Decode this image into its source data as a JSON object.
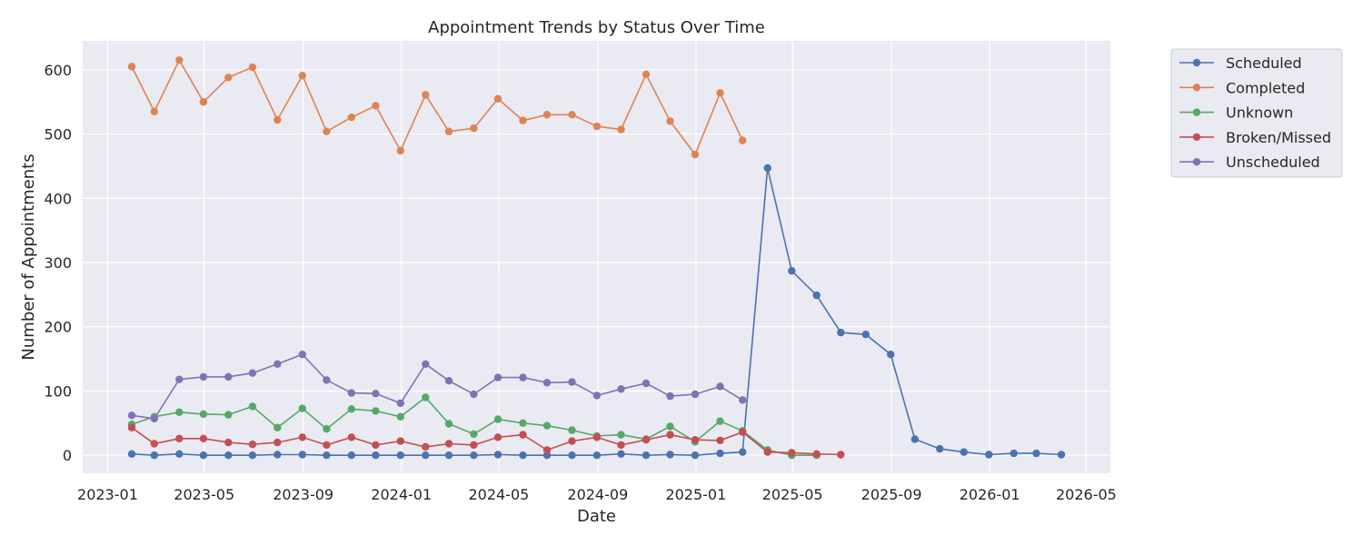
{
  "chart_data": {
    "type": "line",
    "title": "Appointment Trends by Status Over Time",
    "xlabel": "Date",
    "ylabel": "Number of Appointments",
    "xlim": [
      "2022-12-01",
      "2026-05-31"
    ],
    "ylim": [
      -28,
      645
    ],
    "x_ticks": [
      "2023-01",
      "2023-05",
      "2023-09",
      "2024-01",
      "2024-05",
      "2024-09",
      "2025-01",
      "2025-05",
      "2025-09",
      "2026-01",
      "2026-05"
    ],
    "y_ticks": [
      0,
      100,
      200,
      300,
      400,
      500,
      600
    ],
    "grid": true,
    "legend_position": "outside-top-right",
    "series": [
      {
        "name": "Scheduled",
        "color": "#4c72b0",
        "x": [
          "2023-01-31",
          "2023-02-28",
          "2023-03-31",
          "2023-04-30",
          "2023-05-31",
          "2023-06-30",
          "2023-07-31",
          "2023-08-31",
          "2023-09-30",
          "2023-10-31",
          "2023-11-30",
          "2023-12-31",
          "2024-01-31",
          "2024-02-29",
          "2024-03-31",
          "2024-04-30",
          "2024-05-31",
          "2024-06-30",
          "2024-07-31",
          "2024-08-31",
          "2024-09-30",
          "2024-10-31",
          "2024-11-30",
          "2024-12-31",
          "2025-01-31",
          "2025-02-28",
          "2025-03-31",
          "2025-04-30",
          "2025-05-31",
          "2025-06-30",
          "2025-07-31",
          "2025-08-31",
          "2025-09-30",
          "2025-10-31",
          "2025-11-30",
          "2025-12-31",
          "2026-01-31",
          "2026-02-28",
          "2026-03-31"
        ],
        "values": [
          2,
          0,
          2,
          0,
          0,
          0,
          1,
          1,
          0,
          0,
          0,
          0,
          0,
          0,
          0,
          1,
          0,
          0,
          0,
          0,
          2,
          0,
          1,
          0,
          3,
          5,
          447,
          287,
          249,
          191,
          188,
          157,
          25,
          10,
          5,
          1,
          3,
          3,
          1
        ]
      },
      {
        "name": "Completed",
        "color": "#dd8452",
        "x": [
          "2023-01-31",
          "2023-02-28",
          "2023-03-31",
          "2023-04-30",
          "2023-05-31",
          "2023-06-30",
          "2023-07-31",
          "2023-08-31",
          "2023-09-30",
          "2023-10-31",
          "2023-11-30",
          "2023-12-31",
          "2024-01-31",
          "2024-02-29",
          "2024-03-31",
          "2024-04-30",
          "2024-05-31",
          "2024-06-30",
          "2024-07-31",
          "2024-08-31",
          "2024-09-30",
          "2024-10-31",
          "2024-11-30",
          "2024-12-31",
          "2025-01-31",
          "2025-02-28"
        ],
        "values": [
          605,
          535,
          615,
          550,
          588,
          604,
          522,
          591,
          504,
          526,
          544,
          474,
          561,
          504,
          509,
          555,
          521,
          530,
          530,
          512,
          507,
          593,
          520,
          468,
          564,
          490
        ]
      },
      {
        "name": "Unknown",
        "color": "#55a868",
        "x": [
          "2023-01-31",
          "2023-02-28",
          "2023-03-31",
          "2023-04-30",
          "2023-05-31",
          "2023-06-30",
          "2023-07-31",
          "2023-08-31",
          "2023-09-30",
          "2023-10-31",
          "2023-11-30",
          "2023-12-31",
          "2024-01-31",
          "2024-02-29",
          "2024-03-31",
          "2024-04-30",
          "2024-05-31",
          "2024-06-30",
          "2024-07-31",
          "2024-08-31",
          "2024-09-30",
          "2024-10-31",
          "2024-11-30",
          "2024-12-31",
          "2025-01-31",
          "2025-02-28",
          "2025-03-31",
          "2025-04-30",
          "2025-05-31"
        ],
        "values": [
          48,
          60,
          67,
          64,
          63,
          76,
          43,
          73,
          41,
          72,
          69,
          60,
          90,
          49,
          33,
          56,
          50,
          46,
          39,
          30,
          32,
          25,
          45,
          21,
          53,
          38,
          8,
          0,
          0
        ]
      },
      {
        "name": "Broken/Missed",
        "color": "#c44e52",
        "x": [
          "2023-01-31",
          "2023-02-28",
          "2023-03-31",
          "2023-04-30",
          "2023-05-31",
          "2023-06-30",
          "2023-07-31",
          "2023-08-31",
          "2023-09-30",
          "2023-10-31",
          "2023-11-30",
          "2023-12-31",
          "2024-01-31",
          "2024-02-29",
          "2024-03-31",
          "2024-04-30",
          "2024-05-31",
          "2024-06-30",
          "2024-07-31",
          "2024-08-31",
          "2024-09-30",
          "2024-10-31",
          "2024-11-30",
          "2024-12-31",
          "2025-01-31",
          "2025-02-28",
          "2025-03-31",
          "2025-04-30",
          "2025-05-31",
          "2025-06-30"
        ],
        "values": [
          43,
          18,
          26,
          26,
          20,
          17,
          20,
          28,
          16,
          28,
          16,
          22,
          13,
          18,
          16,
          28,
          32,
          8,
          22,
          28,
          16,
          24,
          32,
          24,
          23,
          36,
          5,
          4,
          2,
          1
        ]
      },
      {
        "name": "Unscheduled",
        "color": "#8172b3",
        "x": [
          "2023-01-31",
          "2023-02-28",
          "2023-03-31",
          "2023-04-30",
          "2023-05-31",
          "2023-06-30",
          "2023-07-31",
          "2023-08-31",
          "2023-09-30",
          "2023-10-31",
          "2023-11-30",
          "2023-12-31",
          "2024-01-31",
          "2024-02-29",
          "2024-03-31",
          "2024-04-30",
          "2024-05-31",
          "2024-06-30",
          "2024-07-31",
          "2024-08-31",
          "2024-09-30",
          "2024-10-31",
          "2024-11-30",
          "2024-12-31",
          "2025-01-31",
          "2025-02-28"
        ],
        "values": [
          62,
          57,
          118,
          122,
          122,
          128,
          142,
          157,
          117,
          97,
          96,
          81,
          142,
          116,
          95,
          121,
          121,
          113,
          114,
          93,
          103,
          112,
          92,
          95,
          107,
          86
        ]
      }
    ]
  }
}
